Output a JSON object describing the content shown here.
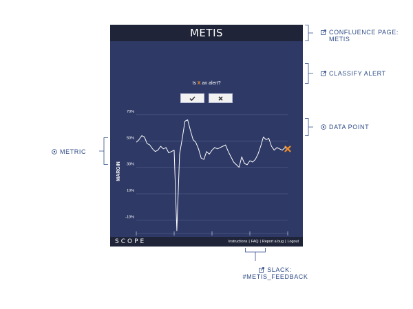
{
  "app": {
    "title": "METIS"
  },
  "question": {
    "before": "Is ",
    "marker": "X",
    "after": " an alert?"
  },
  "buttons": {
    "confirm_icon": "check-icon",
    "reject_icon": "close-icon"
  },
  "colors": {
    "panel": "#2e3965",
    "bar": "#1f2438",
    "line": "#ffffff",
    "marker": "#f28c28",
    "annotation": "#2e4a86"
  },
  "chart_data": {
    "type": "line",
    "ylabel": "MARGIN",
    "yticks": [
      "70%",
      "50%",
      "30%",
      "10%",
      "-10%"
    ],
    "ytick_values": [
      70,
      50,
      30,
      10,
      -10
    ],
    "ylim": [
      -18,
      72
    ],
    "xticks": [
      "Th, Aug 24",
      "Th, Sep 7",
      "Th, Sep 21",
      "Th, Oct 5",
      "Th, Oct 19"
    ],
    "xtick_values": [
      0,
      14,
      28,
      42,
      56
    ],
    "xlim": [
      0,
      56
    ],
    "grid": true,
    "series": [
      {
        "x": [
          0,
          1,
          2,
          3,
          4,
          5,
          6,
          7,
          8,
          9,
          10,
          11,
          12,
          13,
          14,
          15,
          16,
          17,
          18,
          19,
          20,
          21,
          22,
          23,
          24,
          25,
          26,
          27,
          28,
          29,
          30,
          31,
          32,
          33,
          34,
          35,
          36,
          37,
          38,
          39,
          40,
          41,
          42,
          43,
          44,
          45,
          46,
          47,
          48,
          49,
          50,
          51,
          52,
          53,
          54,
          55,
          56
        ],
        "y": [
          49,
          51,
          54,
          53,
          48,
          47,
          44,
          42,
          43,
          46,
          44,
          45,
          41,
          42,
          43,
          -18,
          40,
          52,
          65,
          66,
          58,
          51,
          49,
          44,
          37,
          36,
          42,
          40,
          43,
          45,
          44,
          45,
          46,
          47,
          42,
          38,
          34,
          32,
          30,
          38,
          33,
          32,
          35,
          34,
          36,
          40,
          46,
          53,
          51,
          52,
          46,
          43,
          45,
          44,
          43,
          45,
          44
        ]
      }
    ],
    "highlight": {
      "x": 56,
      "y": 44,
      "marker": "X"
    }
  },
  "footer": {
    "logo": "SCOPE",
    "links": [
      "Instructions",
      "FAQ",
      "Report a bug",
      "Logout"
    ],
    "separator": "|"
  },
  "annotations": {
    "confluence": {
      "line1": "CONFLUENCE PAGE:",
      "line2": "METIS",
      "icon": "external-link-icon"
    },
    "classify": {
      "label": "CLASSIFY ALERT",
      "icon": "external-link-icon"
    },
    "datapoint": {
      "label": "DATA POINT",
      "icon": "target-icon"
    },
    "metric": {
      "label": "METRIC",
      "icon": "target-icon"
    },
    "slack": {
      "line1": "SLACK:",
      "line2": "#METIS_FEEDBACK",
      "icon": "external-link-icon"
    }
  }
}
